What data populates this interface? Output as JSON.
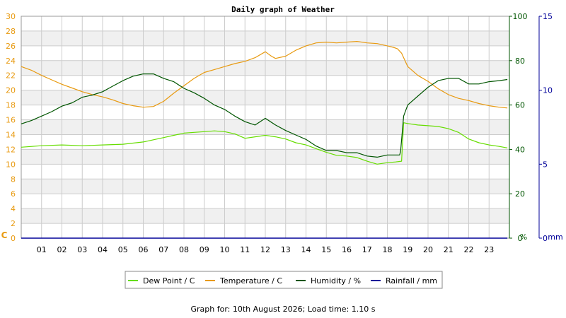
{
  "title": "Daily graph of Weather",
  "footer": "Graph for: 10th August 2026; Load time: 1.10 s",
  "colors": {
    "dew_point": "#66dd00",
    "temperature": "#e89a10",
    "humidity": "#005500",
    "rainfall": "#000099",
    "band": "#f0f0f0",
    "grid": "#cccccc"
  },
  "chart_data": {
    "type": "line",
    "x_unit": "hour",
    "x_range": [
      0,
      24
    ],
    "x_ticks": [
      "01",
      "02",
      "03",
      "04",
      "05",
      "06",
      "07",
      "08",
      "09",
      "10",
      "11",
      "12",
      "13",
      "14",
      "15",
      "16",
      "17",
      "18",
      "19",
      "20",
      "21",
      "22",
      "23"
    ],
    "axes": {
      "left": {
        "label": "C",
        "range": [
          0,
          30
        ],
        "ticks": [
          "0",
          "2",
          "4",
          "6",
          "8",
          "10",
          "12",
          "14",
          "16",
          "18",
          "20",
          "22",
          "24",
          "26",
          "28",
          "30"
        ]
      },
      "right1": {
        "label": "%",
        "range": [
          0,
          100
        ],
        "ticks": [
          "0",
          "20",
          "40",
          "60",
          "80",
          "100"
        ]
      },
      "right2": {
        "label": "mm",
        "range": [
          0,
          15
        ],
        "ticks": [
          "0",
          "5",
          "10",
          "15"
        ]
      }
    },
    "grid": true,
    "legend_position": "bottom",
    "series": [
      {
        "key": "dew_point",
        "name": "Dew Point / C",
        "axis": "left",
        "x": [
          0,
          1,
          2,
          3,
          4,
          5,
          6,
          7,
          7.5,
          8,
          8.5,
          9,
          9.5,
          10,
          10.5,
          11,
          11.5,
          12,
          12.5,
          13,
          13.5,
          14,
          14.5,
          15,
          15.5,
          16,
          16.5,
          17,
          17.5,
          18,
          18.4,
          18.7,
          18.8,
          19,
          19.5,
          20,
          20.5,
          21,
          21.5,
          22,
          22.5,
          23,
          23.5,
          23.9
        ],
        "y": [
          12.3,
          12.5,
          12.6,
          12.5,
          12.6,
          12.7,
          13.0,
          13.6,
          13.9,
          14.2,
          14.3,
          14.4,
          14.5,
          14.4,
          14.1,
          13.5,
          13.7,
          13.9,
          13.7,
          13.4,
          12.9,
          12.6,
          12.1,
          11.6,
          11.2,
          11.1,
          10.9,
          10.4,
          10.0,
          10.2,
          10.3,
          10.4,
          15.6,
          15.5,
          15.3,
          15.2,
          15.1,
          14.8,
          14.3,
          13.4,
          12.9,
          12.6,
          12.4,
          12.2
        ]
      },
      {
        "key": "temperature",
        "name": "Temperature / C",
        "axis": "left",
        "x": [
          0,
          0.5,
          1,
          1.5,
          2,
          2.5,
          3,
          3.5,
          4,
          4.5,
          5,
          5.5,
          6,
          6.5,
          7,
          7.5,
          8,
          8.5,
          9,
          9.5,
          10,
          10.5,
          11,
          11.5,
          12,
          12.3,
          12.5,
          13,
          13.5,
          14,
          14.5,
          15,
          15.5,
          16,
          16.5,
          17,
          17.5,
          18,
          18.3,
          18.5,
          18.7,
          19,
          19.5,
          20,
          20.5,
          21,
          21.5,
          22,
          22.5,
          23,
          23.5,
          23.9
        ],
        "y": [
          23.2,
          22.7,
          22.0,
          21.4,
          20.8,
          20.3,
          19.8,
          19.4,
          19.1,
          18.7,
          18.2,
          17.9,
          17.7,
          17.8,
          18.5,
          19.6,
          20.6,
          21.6,
          22.4,
          22.8,
          23.2,
          23.6,
          23.9,
          24.4,
          25.2,
          24.6,
          24.3,
          24.6,
          25.4,
          26.0,
          26.4,
          26.5,
          26.4,
          26.5,
          26.6,
          26.4,
          26.3,
          26.0,
          25.8,
          25.6,
          25.0,
          23.2,
          22.0,
          21.2,
          20.2,
          19.4,
          18.9,
          18.6,
          18.2,
          17.9,
          17.7,
          17.6
        ]
      },
      {
        "key": "humidity",
        "name": "Humidity / %",
        "axis": "right1",
        "x": [
          0,
          0.5,
          1,
          1.5,
          2,
          2.5,
          3,
          3.5,
          4,
          4.5,
          5,
          5.5,
          6,
          6.5,
          7,
          7.5,
          8,
          8.5,
          9,
          9.5,
          10,
          10.5,
          11,
          11.5,
          12,
          12.5,
          13,
          13.5,
          14,
          14.5,
          15,
          15.5,
          16,
          16.5,
          17,
          17.5,
          18,
          18.6,
          18.65,
          18.8,
          19,
          19.5,
          20,
          20.5,
          21,
          21.5,
          22,
          22.5,
          23,
          23.5,
          23.9
        ],
        "y": [
          51.5,
          53.0,
          55.0,
          57.0,
          59.5,
          61.0,
          63.5,
          64.5,
          66.0,
          68.5,
          71.0,
          73.0,
          74.0,
          74.0,
          72.0,
          70.5,
          67.5,
          65.5,
          63.0,
          60.0,
          58.0,
          55.0,
          52.5,
          51.0,
          54.0,
          51.0,
          48.5,
          46.5,
          44.5,
          41.5,
          39.5,
          39.5,
          38.5,
          38.5,
          37.0,
          36.5,
          37.5,
          37.5,
          39.0,
          55.0,
          60.0,
          64.0,
          68.0,
          71.0,
          72.0,
          72.0,
          69.5,
          69.5,
          70.5,
          71.0,
          71.5
        ]
      },
      {
        "key": "rainfall",
        "name": "Rainfall / mm",
        "axis": "right2",
        "x": [
          0,
          23.9
        ],
        "y": [
          0,
          0
        ]
      }
    ]
  }
}
